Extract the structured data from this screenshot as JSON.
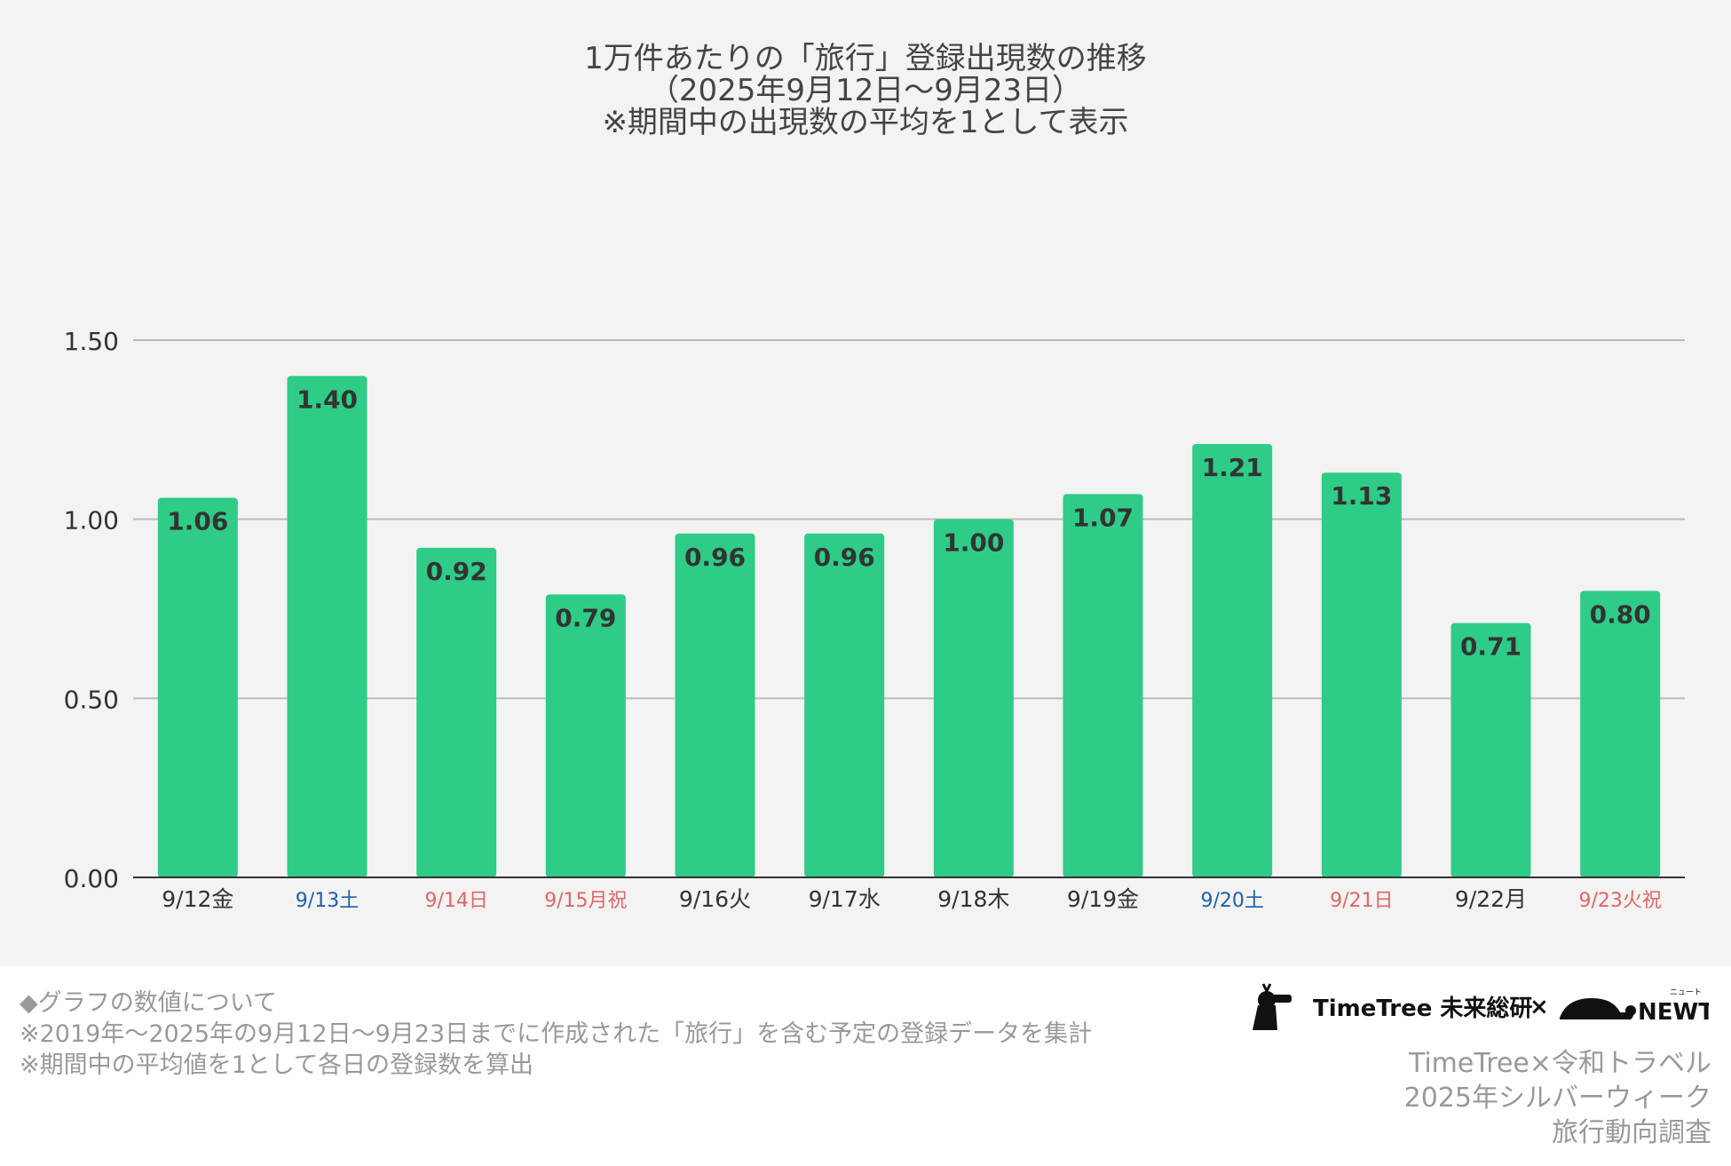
{
  "chart_data": {
    "type": "bar",
    "title": [
      "1万件あたりの「旅行」登録出現数の推移",
      "（2025年9月12日〜9月23日）",
      "※期間中の出現数の平均を1として表示"
    ],
    "categories": [
      "9/12金",
      "9/13土",
      "9/14日",
      "9/15月祝",
      "9/16火",
      "9/17水",
      "9/18木",
      "9/19金",
      "9/20土",
      "9/21日",
      "9/22月",
      "9/23火祝"
    ],
    "category_types": [
      "weekday",
      "saturday",
      "holiday",
      "holiday",
      "weekday",
      "weekday",
      "weekday",
      "weekday",
      "saturday",
      "holiday",
      "weekday",
      "holiday"
    ],
    "values": [
      1.06,
      1.4,
      0.92,
      0.79,
      0.96,
      0.96,
      1.0,
      1.07,
      1.21,
      1.13,
      0.71,
      0.8
    ],
    "value_labels": [
      "1.06",
      "1.40",
      "0.92",
      "0.79",
      "0.96",
      "0.96",
      "1.00",
      "1.07",
      "1.21",
      "1.13",
      "0.71",
      "0.80"
    ],
    "y_ticks": [
      0,
      0.5,
      1.0,
      1.5
    ],
    "y_tick_labels": [
      "0.00",
      "0.50",
      "1.00",
      "1.50"
    ],
    "ylim": [
      0,
      1.5
    ],
    "xlabel": "",
    "ylabel": "",
    "grid": true,
    "legend": "none"
  },
  "colors": {
    "bar": "#2ecc87",
    "panel_background": "#f3f3f3",
    "weekday_label": "#333333",
    "saturday_label": "#1f5fa8",
    "holiday_label": "#e06666",
    "gridline": "#bbbbbb",
    "text_muted": "#999999"
  },
  "footnote": {
    "lines": [
      "◆グラフの数値について",
      "※2019年〜2025年の9月12日〜9月23日までに作成された「旅行」を含む予定の登録データを集計",
      "※期間中の平均値を1として各日の登録数を算出"
    ]
  },
  "logos": {
    "timetree": "TimeTree 未来総研",
    "separator": "×",
    "newt": "NEWT",
    "newt_ruby": "ニュート"
  },
  "credit": {
    "lines": [
      "TimeTree×令和トラベル",
      "2025年シルバーウィーク",
      "旅行動向調査"
    ]
  }
}
